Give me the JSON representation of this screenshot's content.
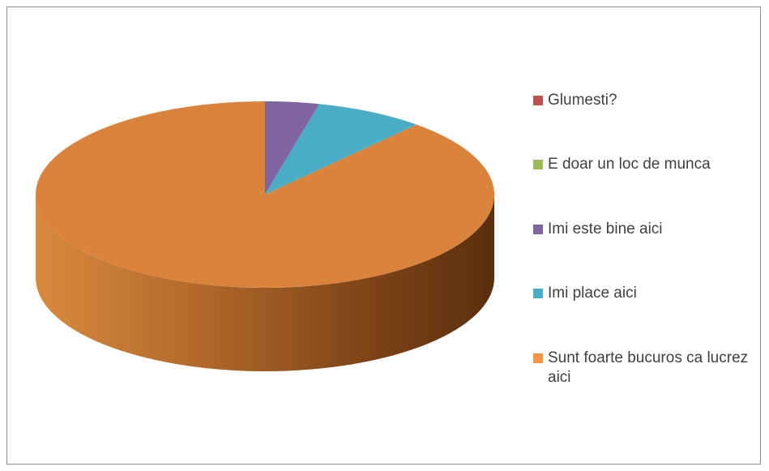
{
  "chart_data": {
    "type": "pie",
    "title": "",
    "legend_position": "right",
    "categories": [
      "Glumesti?",
      "E doar un loc de munca",
      "Imi este bine aici",
      "Imi place aici",
      "Sunt foarte bucuros ca lucrez aici"
    ],
    "values": [
      0,
      0,
      3.8,
      7.7,
      88.5
    ],
    "colors": [
      "#C0504D",
      "#9BBB59",
      "#8064A2",
      "#4BACC6",
      "#F79646"
    ],
    "side_colors": [
      "#8A3A37",
      "#6F8740",
      "#5C4875",
      "#367C8F",
      "#B3691C"
    ]
  }
}
